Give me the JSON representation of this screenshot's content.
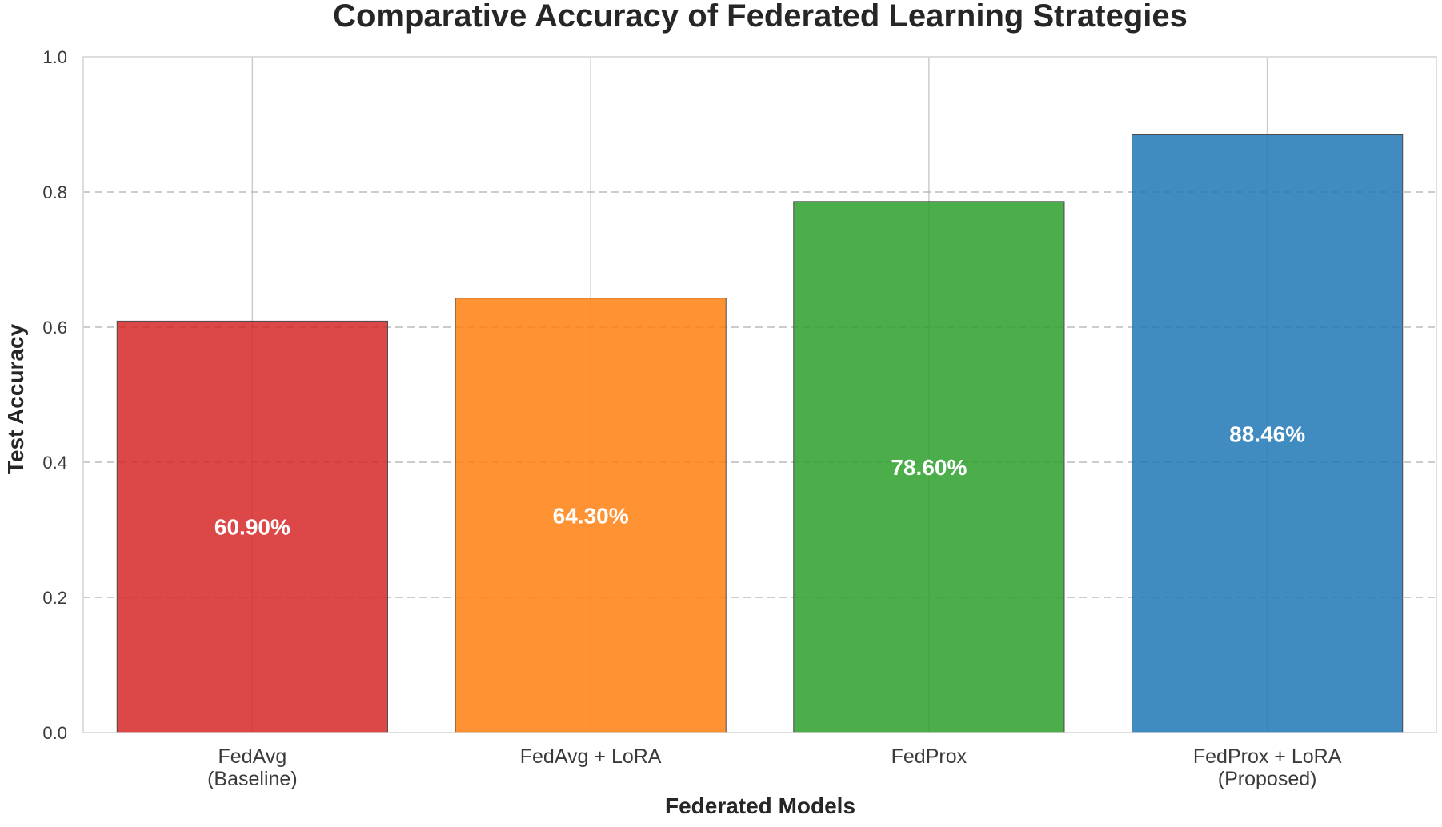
{
  "chart_data": {
    "type": "bar",
    "title": "Comparative Accuracy of Federated Learning Strategies",
    "xlabel": "Federated Models",
    "ylabel": "Test Accuracy",
    "categories": [
      [
        "FedAvg",
        "(Baseline)"
      ],
      [
        "FedAvg + LoRA"
      ],
      [
        "FedProx"
      ],
      [
        "FedProx + LoRA",
        "(Proposed)"
      ]
    ],
    "values": [
      0.609,
      0.643,
      0.786,
      0.8846
    ],
    "data_labels": [
      "60.90%",
      "64.30%",
      "78.60%",
      "88.46%"
    ],
    "colors": [
      "#d62728",
      "#ff7f0e",
      "#2ca02c",
      "#1f77b4"
    ],
    "ylim": [
      0,
      1.0
    ],
    "yticks": [
      0.0,
      0.2,
      0.4,
      0.6,
      0.8,
      1.0
    ],
    "ytick_labels": [
      "0.0",
      "0.2",
      "0.4",
      "0.6",
      "0.8",
      "1.0"
    ],
    "grid": true,
    "horizontal_grid_style": "dashed",
    "legend": "none"
  }
}
